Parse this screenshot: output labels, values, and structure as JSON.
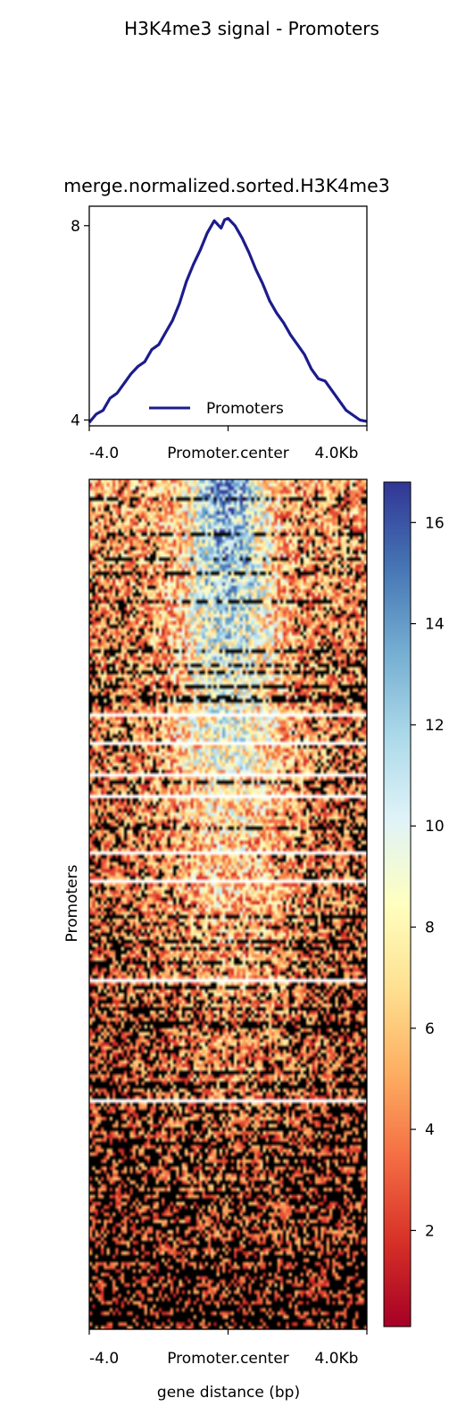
{
  "figure": {
    "suptitle": "H3K4me3 signal - Promoters"
  },
  "chart_data": [
    {
      "type": "line",
      "title": "merge.normalized.sorted.H3K4me3",
      "xlabel": "",
      "ylabel": "",
      "xlim": [
        -4000,
        4000
      ],
      "ylim": [
        3.88,
        8.4
      ],
      "x_ticks": [
        {
          "value": -4000,
          "label": "-4.0"
        },
        {
          "value": 0,
          "label": "Promoter.center"
        },
        {
          "value": 4000,
          "label": "4.0Kb"
        }
      ],
      "y_ticks": [
        {
          "value": 4,
          "label": "4"
        },
        {
          "value": 8,
          "label": "8"
        }
      ],
      "legend": {
        "placement": "lower-center"
      },
      "series": [
        {
          "name": "Promoters",
          "color": "#1c1c8c",
          "x": [
            -4000,
            -3800,
            -3600,
            -3400,
            -3200,
            -3000,
            -2800,
            -2600,
            -2400,
            -2200,
            -2000,
            -1800,
            -1600,
            -1400,
            -1200,
            -1000,
            -800,
            -600,
            -400,
            -200,
            -100,
            0,
            200,
            400,
            600,
            800,
            1000,
            1200,
            1400,
            1600,
            1800,
            2000,
            2200,
            2400,
            2600,
            2800,
            3000,
            3200,
            3400,
            3600,
            3800,
            4000
          ],
          "y": [
            3.95,
            4.12,
            4.2,
            4.45,
            4.55,
            4.75,
            4.95,
            5.1,
            5.2,
            5.45,
            5.55,
            5.8,
            6.05,
            6.4,
            6.85,
            7.2,
            7.5,
            7.85,
            8.1,
            7.95,
            8.12,
            8.15,
            8.0,
            7.75,
            7.45,
            7.1,
            6.8,
            6.45,
            6.2,
            6.0,
            5.75,
            5.55,
            5.35,
            5.05,
            4.85,
            4.8,
            4.6,
            4.4,
            4.2,
            4.1,
            4.0,
            3.97
          ]
        }
      ]
    },
    {
      "type": "heatmap",
      "xlabel": "gene distance (bp)",
      "ylabel": "Promoters",
      "xlim": [
        -4000,
        4000
      ],
      "x_ticks": [
        {
          "value": -4000,
          "label": "-4.0"
        },
        {
          "value": 0,
          "label": "Promoter.center"
        },
        {
          "value": 4000,
          "label": "4.0Kb"
        }
      ],
      "colormap": "RdYlBu",
      "colorbar": {
        "vmin": 0.1,
        "vmax": 16.8,
        "ticks": [
          2,
          4,
          6,
          8,
          10,
          12,
          14,
          16
        ],
        "colors": [
          "#a50026",
          "#d73027",
          "#f46d43",
          "#fdae61",
          "#fee090",
          "#ffffbf",
          "#e0f3f8",
          "#abd9e9",
          "#74add1",
          "#4575b4",
          "#313695"
        ]
      },
      "rows_shown": 240,
      "columns_shown": 96,
      "peak_center_gene_distance": 0,
      "signal_trend": "strongest signal in top rows near the promoter center, weakening toward the bottom rows"
    }
  ]
}
